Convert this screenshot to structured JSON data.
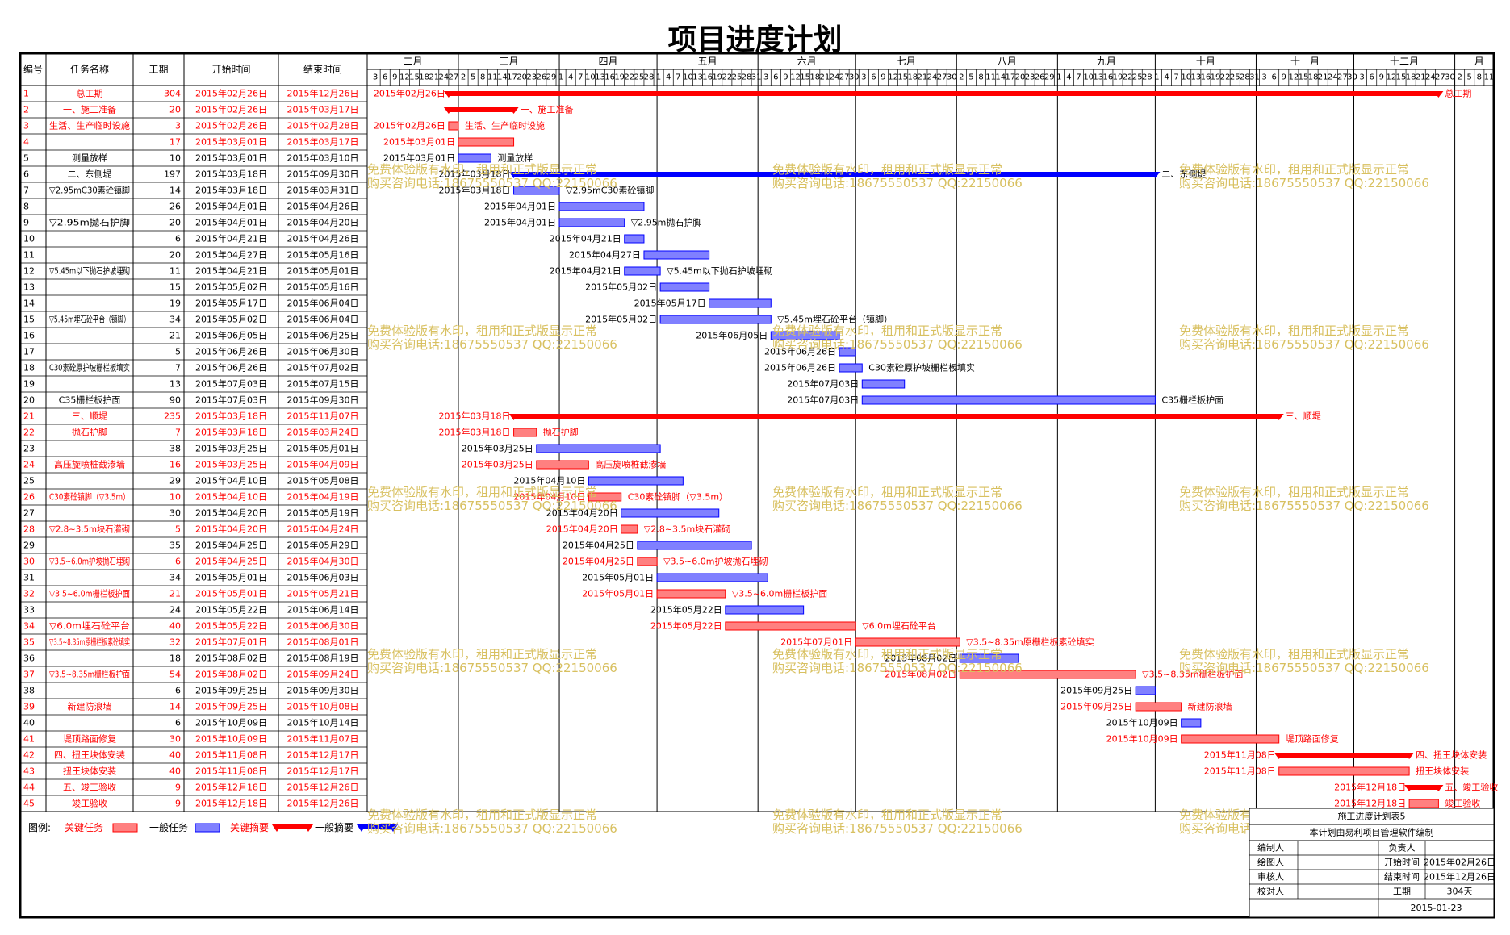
{
  "title": "项目进度计划",
  "table": {
    "headers": [
      "编号",
      "任务名称",
      "工期",
      "开始时间",
      "结束时间"
    ]
  },
  "timeline": {
    "months": [
      "二月",
      "三月",
      "四月",
      "五月",
      "六月",
      "七月",
      "八月",
      "九月",
      "十月",
      "十一月",
      "十二月",
      "一月"
    ],
    "days": [
      [
        "3",
        "6",
        "9",
        "12",
        "15",
        "18",
        "21",
        "24",
        "27"
      ],
      [
        "2",
        "5",
        "8",
        "11",
        "14",
        "17",
        "20",
        "23",
        "26",
        "29"
      ],
      [
        "1",
        "4",
        "7",
        "10",
        "13",
        "16",
        "19",
        "22",
        "25",
        "28"
      ],
      [
        "1",
        "4",
        "7",
        "10",
        "13",
        "16",
        "19",
        "22",
        "25",
        "28",
        "31"
      ],
      [
        "3",
        "6",
        "9",
        "12",
        "15",
        "18",
        "21",
        "24",
        "27",
        "30"
      ],
      [
        "3",
        "6",
        "9",
        "12",
        "15",
        "18",
        "21",
        "24",
        "27",
        "30"
      ],
      [
        "2",
        "5",
        "8",
        "11",
        "14",
        "17",
        "20",
        "23",
        "26",
        "29"
      ],
      [
        "1",
        "4",
        "7",
        "10",
        "13",
        "16",
        "19",
        "22",
        "25",
        "28"
      ],
      [
        "1",
        "4",
        "7",
        "10",
        "13",
        "16",
        "19",
        "22",
        "25",
        "28",
        "31"
      ],
      [
        "3",
        "6",
        "9",
        "12",
        "15",
        "18",
        "21",
        "24",
        "27",
        "30"
      ],
      [
        "3",
        "6",
        "9",
        "12",
        "15",
        "18",
        "21",
        "24",
        "27",
        "30"
      ],
      [
        "2",
        "5",
        "8",
        "11"
      ]
    ]
  },
  "colors": {
    "critical": "#ff0000",
    "normal": "#0000ff",
    "critical_fill": "#ff8080",
    "normal_fill": "#8080ff",
    "watermark": "#d8c060"
  },
  "watermark": {
    "line1": "免费体验版有水印，租用和正式版显示正常",
    "line2": "购买咨询电话:18675550537 QQ:22150066"
  },
  "legend": {
    "prefix": "图例:",
    "items": [
      "关键任务",
      "一般任务",
      "关键摘要",
      "一般摘要"
    ]
  },
  "info_block": {
    "plan_name": "施工进度计划表5",
    "software": "本计划由易利项目管理软件编制",
    "labels": [
      "编制人",
      "绘图人",
      "审核人",
      "校对人"
    ],
    "right_labels": [
      "负责人",
      "开始时间",
      "结束时间",
      "工期"
    ],
    "right_values": [
      "",
      "2015年02月26日",
      "2015年12月26日",
      "304天"
    ],
    "date": "2015-01-23"
  },
  "chart_data": {
    "type": "gantt",
    "title": "项目进度计划",
    "tasks": [
      {
        "id": "1",
        "name": "总工期",
        "dur": "304",
        "start": "2015年02月26日",
        "end": "2015年12月26日",
        "kind": "summary",
        "critical": true,
        "label": "总工期",
        "startLabel": "2015年02月26日"
      },
      {
        "id": "2",
        "name": "一、施工准备",
        "dur": "20",
        "start": "2015年02月26日",
        "end": "2015年03月17日",
        "kind": "summary",
        "critical": true,
        "label": "一、施工准备",
        "startLabel": ""
      },
      {
        "id": "3",
        "name": "生活、生产临时设施",
        "dur": "3",
        "start": "2015年02月26日",
        "end": "2015年02月28日",
        "kind": "task",
        "critical": true,
        "label": "生活、生产临时设施",
        "startLabel": "2015年02月26日"
      },
      {
        "id": "4",
        "name": "",
        "dur": "17",
        "start": "2015年03月01日",
        "end": "2015年03月17日",
        "kind": "task",
        "critical": true,
        "label": "",
        "startLabel": "2015年03月01日"
      },
      {
        "id": "5",
        "name": "测量放样",
        "dur": "10",
        "start": "2015年03月01日",
        "end": "2015年03月10日",
        "kind": "task",
        "critical": false,
        "label": "测量放样",
        "startLabel": "2015年03月01日"
      },
      {
        "id": "6",
        "name": "二、东侧堤",
        "dur": "197",
        "start": "2015年03月18日",
        "end": "2015年09月30日",
        "kind": "summary",
        "critical": false,
        "label": "二、东侧堤",
        "startLabel": "2015年03月18日"
      },
      {
        "id": "7",
        "name": "▽2.95mC30素砼镇脚",
        "dur": "14",
        "start": "2015年03月18日",
        "end": "2015年03月31日",
        "kind": "task",
        "critical": false,
        "label": "▽2.95mC30素砼镇脚",
        "startLabel": "2015年03月18日"
      },
      {
        "id": "8",
        "name": "",
        "dur": "26",
        "start": "2015年04月01日",
        "end": "2015年04月26日",
        "kind": "task",
        "critical": false,
        "label": "",
        "startLabel": "2015年04月01日"
      },
      {
        "id": "9",
        "name": "▽2.95m抛石护脚",
        "dur": "20",
        "start": "2015年04月01日",
        "end": "2015年04月20日",
        "kind": "task",
        "critical": false,
        "label": "▽2.95m抛石护脚",
        "startLabel": "2015年04月01日"
      },
      {
        "id": "10",
        "name": "",
        "dur": "6",
        "start": "2015年04月21日",
        "end": "2015年04月26日",
        "kind": "task",
        "critical": false,
        "label": "",
        "startLabel": "2015年04月21日"
      },
      {
        "id": "11",
        "name": "",
        "dur": "20",
        "start": "2015年04月27日",
        "end": "2015年05月16日",
        "kind": "task",
        "critical": false,
        "label": "",
        "startLabel": "2015年04月27日"
      },
      {
        "id": "12",
        "name": "▽5.45m以下抛石护坡埋砌",
        "dur": "11",
        "start": "2015年04月21日",
        "end": "2015年05月01日",
        "kind": "task",
        "critical": false,
        "label": "▽5.45m以下抛石护坡埋砌",
        "startLabel": "2015年04月21日"
      },
      {
        "id": "13",
        "name": "",
        "dur": "15",
        "start": "2015年05月02日",
        "end": "2015年05月16日",
        "kind": "task",
        "critical": false,
        "label": "",
        "startLabel": "2015年05月02日"
      },
      {
        "id": "14",
        "name": "",
        "dur": "19",
        "start": "2015年05月17日",
        "end": "2015年06月04日",
        "kind": "task",
        "critical": false,
        "label": "",
        "startLabel": "2015年05月17日"
      },
      {
        "id": "15",
        "name": "▽5.45m埋石砼平台（镇脚）",
        "dur": "34",
        "start": "2015年05月02日",
        "end": "2015年06月04日",
        "kind": "task",
        "critical": false,
        "label": "▽5.45m埋石砼平台（镇脚）",
        "startLabel": "2015年05月02日"
      },
      {
        "id": "16",
        "name": "",
        "dur": "21",
        "start": "2015年06月05日",
        "end": "2015年06月25日",
        "kind": "task",
        "critical": false,
        "label": "",
        "startLabel": "2015年06月05日"
      },
      {
        "id": "17",
        "name": "",
        "dur": "5",
        "start": "2015年06月26日",
        "end": "2015年06月30日",
        "kind": "task",
        "critical": false,
        "label": "",
        "startLabel": "2015年06月26日"
      },
      {
        "id": "18",
        "name": "C30素砼原护坡栅栏板填实",
        "dur": "7",
        "start": "2015年06月26日",
        "end": "2015年07月02日",
        "kind": "task",
        "critical": false,
        "label": "C30素砼原护坡栅栏板填实",
        "startLabel": "2015年06月26日"
      },
      {
        "id": "19",
        "name": "",
        "dur": "13",
        "start": "2015年07月03日",
        "end": "2015年07月15日",
        "kind": "task",
        "critical": false,
        "label": "",
        "startLabel": "2015年07月03日"
      },
      {
        "id": "20",
        "name": "C35栅栏板护面",
        "dur": "90",
        "start": "2015年07月03日",
        "end": "2015年09月30日",
        "kind": "task",
        "critical": false,
        "label": "C35栅栏板护面",
        "startLabel": "2015年07月03日"
      },
      {
        "id": "21",
        "name": "三、顺堤",
        "dur": "235",
        "start": "2015年03月18日",
        "end": "2015年11月07日",
        "kind": "summary",
        "critical": true,
        "label": "三、顺堤",
        "startLabel": "2015年03月18日"
      },
      {
        "id": "22",
        "name": "抛石护脚",
        "dur": "7",
        "start": "2015年03月18日",
        "end": "2015年03月24日",
        "kind": "task",
        "critical": true,
        "label": "抛石护脚",
        "startLabel": "2015年03月18日"
      },
      {
        "id": "23",
        "name": "",
        "dur": "38",
        "start": "2015年03月25日",
        "end": "2015年05月01日",
        "kind": "task",
        "critical": false,
        "label": "",
        "startLabel": "2015年03月25日"
      },
      {
        "id": "24",
        "name": "高压旋喷桩截渗墙",
        "dur": "16",
        "start": "2015年03月25日",
        "end": "2015年04月09日",
        "kind": "task",
        "critical": true,
        "label": "高压旋喷桩截渗墙",
        "startLabel": "2015年03月25日"
      },
      {
        "id": "25",
        "name": "",
        "dur": "29",
        "start": "2015年04月10日",
        "end": "2015年05月08日",
        "kind": "task",
        "critical": false,
        "label": "",
        "startLabel": "2015年04月10日"
      },
      {
        "id": "26",
        "name": "C30素砼镇脚（▽3.5m）",
        "dur": "10",
        "start": "2015年04月10日",
        "end": "2015年04月19日",
        "kind": "task",
        "critical": true,
        "label": "C30素砼镇脚（▽3.5m）",
        "startLabel": "2015年04月10日"
      },
      {
        "id": "27",
        "name": "",
        "dur": "30",
        "start": "2015年04月20日",
        "end": "2015年05月19日",
        "kind": "task",
        "critical": false,
        "label": "",
        "startLabel": "2015年04月20日"
      },
      {
        "id": "28",
        "name": "▽2.8~3.5m块石灌砌",
        "dur": "5",
        "start": "2015年04月20日",
        "end": "2015年04月24日",
        "kind": "task",
        "critical": true,
        "label": "▽2.8~3.5m块石灌砌",
        "startLabel": "2015年04月20日"
      },
      {
        "id": "29",
        "name": "",
        "dur": "35",
        "start": "2015年04月25日",
        "end": "2015年05月29日",
        "kind": "task",
        "critical": false,
        "label": "",
        "startLabel": "2015年04月25日"
      },
      {
        "id": "30",
        "name": "▽3.5~6.0m护坡抛石埋砌",
        "dur": "6",
        "start": "2015年04月25日",
        "end": "2015年04月30日",
        "kind": "task",
        "critical": true,
        "label": "▽3.5~6.0m护坡抛石埋砌",
        "startLabel": "2015年04月25日"
      },
      {
        "id": "31",
        "name": "",
        "dur": "34",
        "start": "2015年05月01日",
        "end": "2015年06月03日",
        "kind": "task",
        "critical": false,
        "label": "",
        "startLabel": "2015年05月01日"
      },
      {
        "id": "32",
        "name": "▽3.5~6.0m栅栏板护面",
        "dur": "21",
        "start": "2015年05月01日",
        "end": "2015年05月21日",
        "kind": "task",
        "critical": true,
        "label": "▽3.5~6.0m栅栏板护面",
        "startLabel": "2015年05月01日"
      },
      {
        "id": "33",
        "name": "",
        "dur": "24",
        "start": "2015年05月22日",
        "end": "2015年06月14日",
        "kind": "task",
        "critical": false,
        "label": "",
        "startLabel": "2015年05月22日"
      },
      {
        "id": "34",
        "name": "▽6.0m埋石砼平台",
        "dur": "40",
        "start": "2015年05月22日",
        "end": "2015年06月30日",
        "kind": "task",
        "critical": true,
        "label": "▽6.0m埋石砼平台",
        "startLabel": "2015年05月22日"
      },
      {
        "id": "35",
        "name": "▽3.5~8.35m原栅栏板素砼填实",
        "dur": "32",
        "start": "2015年07月01日",
        "end": "2015年08月01日",
        "kind": "task",
        "critical": true,
        "label": "▽3.5~8.35m原栅栏板素砼填实",
        "startLabel": "2015年07月01日"
      },
      {
        "id": "36",
        "name": "",
        "dur": "18",
        "start": "2015年08月02日",
        "end": "2015年08月19日",
        "kind": "task",
        "critical": false,
        "label": "",
        "startLabel": "2015年08月02日"
      },
      {
        "id": "37",
        "name": "▽3.5~8.35m栅栏板护面",
        "dur": "54",
        "start": "2015年08月02日",
        "end": "2015年09月24日",
        "kind": "task",
        "critical": true,
        "label": "▽3.5~8.35m栅栏板护面",
        "startLabel": "2015年08月02日"
      },
      {
        "id": "38",
        "name": "",
        "dur": "6",
        "start": "2015年09月25日",
        "end": "2015年09月30日",
        "kind": "task",
        "critical": false,
        "label": "",
        "startLabel": "2015年09月25日"
      },
      {
        "id": "39",
        "name": "新建防浪墙",
        "dur": "14",
        "start": "2015年09月25日",
        "end": "2015年10月08日",
        "kind": "task",
        "critical": true,
        "label": "新建防浪墙",
        "startLabel": "2015年09月25日"
      },
      {
        "id": "40",
        "name": "",
        "dur": "6",
        "start": "2015年10月09日",
        "end": "2015年10月14日",
        "kind": "task",
        "critical": false,
        "label": "",
        "startLabel": "2015年10月09日"
      },
      {
        "id": "41",
        "name": "堤顶路面修复",
        "dur": "30",
        "start": "2015年10月09日",
        "end": "2015年11月07日",
        "kind": "task",
        "critical": true,
        "label": "堤顶路面修复",
        "startLabel": "2015年10月09日"
      },
      {
        "id": "42",
        "name": "四、扭王块体安装",
        "dur": "40",
        "start": "2015年11月08日",
        "end": "2015年12月17日",
        "kind": "summary",
        "critical": true,
        "label": "四、扭王块体安装",
        "startLabel": "2015年11月08日"
      },
      {
        "id": "43",
        "name": "扭王块体安装",
        "dur": "40",
        "start": "2015年11月08日",
        "end": "2015年12月17日",
        "kind": "task",
        "critical": true,
        "label": "扭王块体安装",
        "startLabel": "2015年11月08日"
      },
      {
        "id": "44",
        "name": "五、竣工验收",
        "dur": "9",
        "start": "2015年12月18日",
        "end": "2015年12月26日",
        "kind": "summary",
        "critical": true,
        "label": "五、竣工验收",
        "startLabel": "2015年12月18日"
      },
      {
        "id": "45",
        "name": "竣工验收",
        "dur": "9",
        "start": "2015年12月18日",
        "end": "2015年12月26日",
        "kind": "task",
        "critical": true,
        "label": "竣工验收",
        "startLabel": "2015年12月18日"
      }
    ]
  }
}
